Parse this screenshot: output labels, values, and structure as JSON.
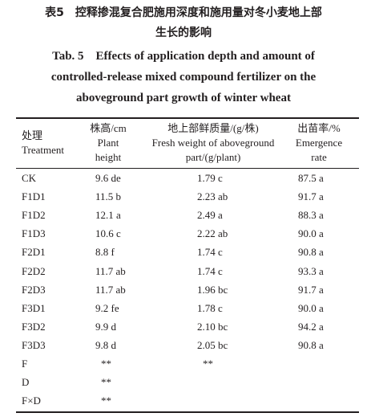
{
  "caption": {
    "cn_lines": [
      "表5　控释掺混复合肥施用深度和施用量对冬小麦地上部",
      "生长的影响"
    ],
    "en_lines": [
      "Tab. 5　Effects of application depth and amount of",
      "controlled-release mixed compound fertilizer on the",
      "aboveground part growth of winter wheat"
    ]
  },
  "table": {
    "header": [
      [
        "处理",
        "Treatment"
      ],
      [
        "株高/cm",
        "Plant",
        "height"
      ],
      [
        "地上部鲜质量/(g/株)",
        "Fresh weight of aboveground",
        "part/(g/plant)"
      ],
      [
        "出苗率/%",
        "Emergence",
        "rate"
      ]
    ],
    "rows": [
      [
        "CK",
        "9.6 de",
        "1.79 c",
        "87.5 a"
      ],
      [
        "F1D1",
        "11.5 b",
        "2.23 ab",
        "91.7 a"
      ],
      [
        "F1D2",
        "12.1 a",
        "2.49 a",
        "88.3 a"
      ],
      [
        "F1D3",
        "10.6 c",
        "2.22 ab",
        "90.0 a"
      ],
      [
        "F2D1",
        "8.8 f",
        "1.74 c",
        "90.8 a"
      ],
      [
        "F2D2",
        "11.7 ab",
        "1.74 c",
        "93.3 a"
      ],
      [
        "F2D3",
        "11.7 ab",
        "1.96 bc",
        "91.7 a"
      ],
      [
        "F3D1",
        "9.2 fe",
        "1.78 c",
        "90.0 a"
      ],
      [
        "F3D2",
        "9.9 d",
        "2.10 bc",
        "94.2 a"
      ],
      [
        "F3D3",
        "9.8 d",
        "2.05 bc",
        "90.8 a"
      ],
      [
        "F",
        "**",
        "**",
        null
      ],
      [
        "D",
        "**",
        null,
        null
      ],
      [
        "F×D",
        "**",
        null,
        null
      ]
    ]
  }
}
